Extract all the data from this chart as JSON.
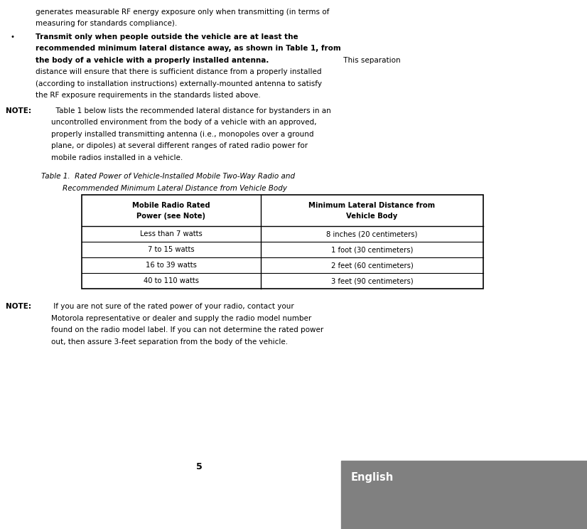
{
  "bg_color": "#ffffff",
  "gray_box_color": "#808080",
  "english_text": "English",
  "english_color": "#ffffff",
  "page_number": "5",
  "fs": 7.5,
  "fs_small": 7.2,
  "bullet_line1": "generates measurable RF energy exposure only when transmitting (in terms of",
  "bullet_line2": "measuring for standards compliance).",
  "bold_lines": [
    "Transmit only when people outside the vehicle are at least the",
    "recommended minimum lateral distance away, as shown in Table 1, from",
    "the body of a vehicle with a properly installed antenna."
  ],
  "normal_lines": [
    "distance will ensure that there is sufficient distance from a properly installed",
    "(according to installation instructions) externally-mounted antenna to satisfy",
    "the RF exposure requirements in the standards listed above."
  ],
  "this_separation": " This separation",
  "note1_lines": [
    "Table 1 below lists the recommended lateral distance for bystanders in an",
    "uncontrolled environment from the body of a vehicle with an approved,",
    "properly installed transmitting antenna (i.e., monopoles over a ground",
    "plane, or dipoles) at several different ranges of rated radio power for",
    "mobile radios installed in a vehicle."
  ],
  "table_caption_line1": "Table 1.  Rated Power of Vehicle-Installed Mobile Two-Way Radio and",
  "table_caption_line2": "Recommended Minimum Lateral Distance from Vehicle Body",
  "table_header_col1_l1": "Mobile Radio Rated",
  "table_header_col1_l2": "Power (see Note)",
  "table_header_col2_l1": "Minimum Lateral Distance from",
  "table_header_col2_l2": "Vehicle Body",
  "table_rows": [
    [
      "Less than 7 watts",
      "8 inches (20 centimeters)"
    ],
    [
      "7 to 15 watts",
      "1 foot (30 centimeters)"
    ],
    [
      "16 to 39 watts",
      "2 feet (60 centimeters)"
    ],
    [
      "40 to 110 watts",
      "3 feet (90 centimeters)"
    ]
  ],
  "note2_lines": [
    "If you are not sure of the rated power of your radio, contact your",
    "Motorola representative or dealer and supply the radio model number",
    "found on the radio model label. If you can not determine the rated power",
    "out, then assure 3-feet separation from the body of the vehicle."
  ]
}
